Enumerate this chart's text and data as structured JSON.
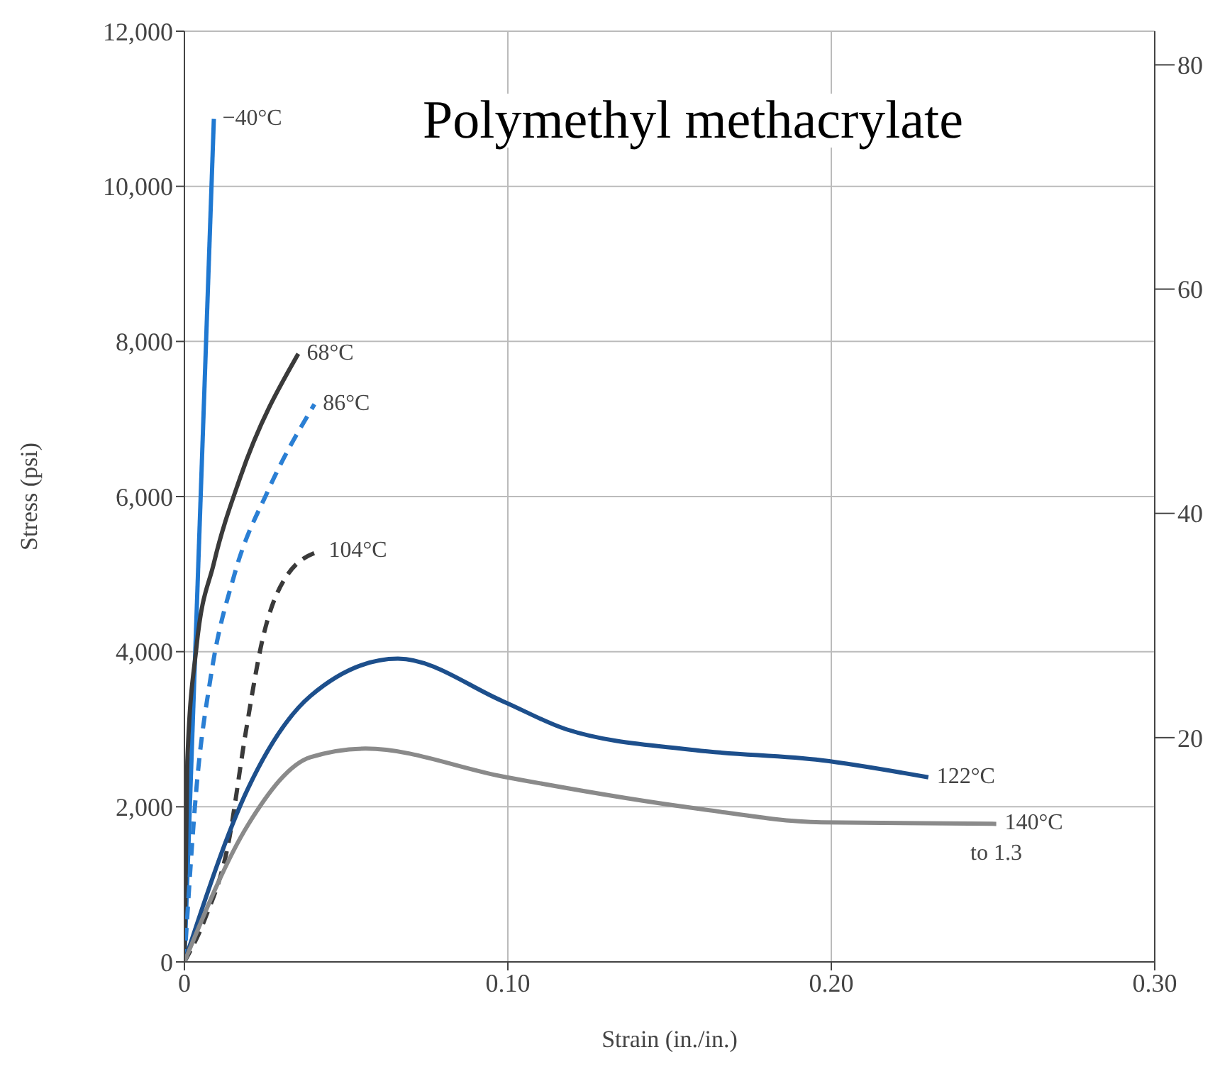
{
  "chart_data": {
    "type": "line",
    "title": "Polymethyl methacrylate",
    "xlabel": "Strain (in./in.)",
    "ylabel": "Stress (psi)",
    "xlim": [
      0,
      0.3
    ],
    "xticks": [
      0,
      {
        "value": 0.1,
        "label": "0.10"
      },
      {
        "value": 0.2,
        "label": "0.20"
      },
      {
        "value": 0.3,
        "label": "0.30"
      }
    ],
    "ylim": [
      0,
      12000
    ],
    "yticks": [
      0,
      {
        "value": 2000,
        "label": "2,000"
      },
      {
        "value": 4000,
        "label": "4,000"
      },
      {
        "value": 6000,
        "label": "6,000"
      },
      {
        "value": 8000,
        "label": "8,000"
      },
      {
        "value": 10000,
        "label": "10,000"
      },
      {
        "value": 12000,
        "label": "12,000"
      }
    ],
    "y2lim": [
      0,
      83
    ],
    "y2ticks": [
      20,
      40,
      60,
      80
    ],
    "grid": true,
    "marker": "none",
    "series": [
      {
        "name": "−40°C",
        "color": "#1f78d1",
        "line_style": "solid",
        "x": [
          0,
          0.0091
        ],
        "values": [
          0,
          10870
        ]
      },
      {
        "name": "68°C",
        "color": "#3a3a3a",
        "line_style": "solid",
        "x": [
          0,
          0.0009,
          0.0037,
          0.0091,
          0.0172,
          0.0352
        ],
        "values": [
          0,
          2590,
          4050,
          5140,
          6240,
          7840
        ]
      },
      {
        "name": "86°C",
        "color": "#2a7fd4",
        "line_style": "dashed",
        "x": [
          0,
          0.0037,
          0.0082,
          0.0155,
          0.026,
          0.0402
        ],
        "values": [
          0,
          2230,
          3690,
          5000,
          6090,
          7190
        ]
      },
      {
        "name": "104°C",
        "color": "#3a3a3a",
        "line_style": "dashed",
        "x": [
          0,
          0.0064,
          0.0135,
          0.019,
          0.024,
          0.032,
          0.042
        ],
        "values": [
          0,
          560,
          1510,
          2970,
          4130,
          5000,
          5300
        ]
      },
      {
        "name": "122°C",
        "color": "#1d4f8c",
        "line_style": "solid",
        "x": [
          0,
          0.0197,
          0.039,
          0.066,
          0.0985,
          0.118,
          0.158,
          0.197,
          0.23
        ],
        "values": [
          0,
          2240,
          3430,
          3910,
          3360,
          3000,
          2730,
          2600,
          2380
        ]
      },
      {
        "name": "140°C",
        "color": "#8a8a8a",
        "line_style": "solid",
        "x": [
          0,
          0.0197,
          0.039,
          0.056,
          0.0985,
          0.158,
          0.197,
          0.251
        ],
        "values": [
          0,
          1770,
          2640,
          2750,
          2390,
          1980,
          1800,
          1780
        ]
      }
    ],
    "annotations": [
      {
        "text": "to 1.3",
        "x": 0.251,
        "y": 1780
      }
    ]
  }
}
